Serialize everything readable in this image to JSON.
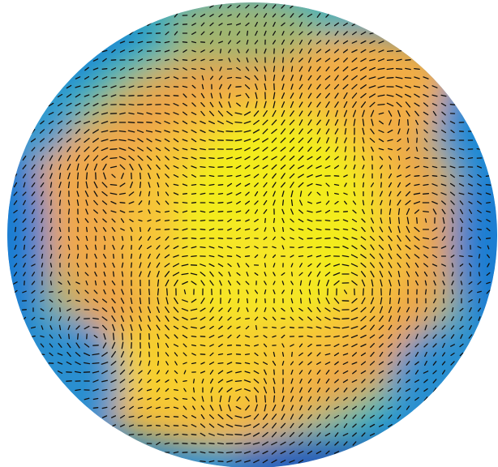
{
  "figure": {
    "kind": "circular-vector-field-over-scalar-map",
    "colormap": [
      "#2e3fa5",
      "#1a78d2",
      "#14b3c9",
      "#5cc3a0",
      "#a8b96e",
      "#e0a44c",
      "#f6b340",
      "#f7d12b",
      "#f4f21a"
    ],
    "arrow_color": "#111111",
    "background": "#ffffff"
  }
}
